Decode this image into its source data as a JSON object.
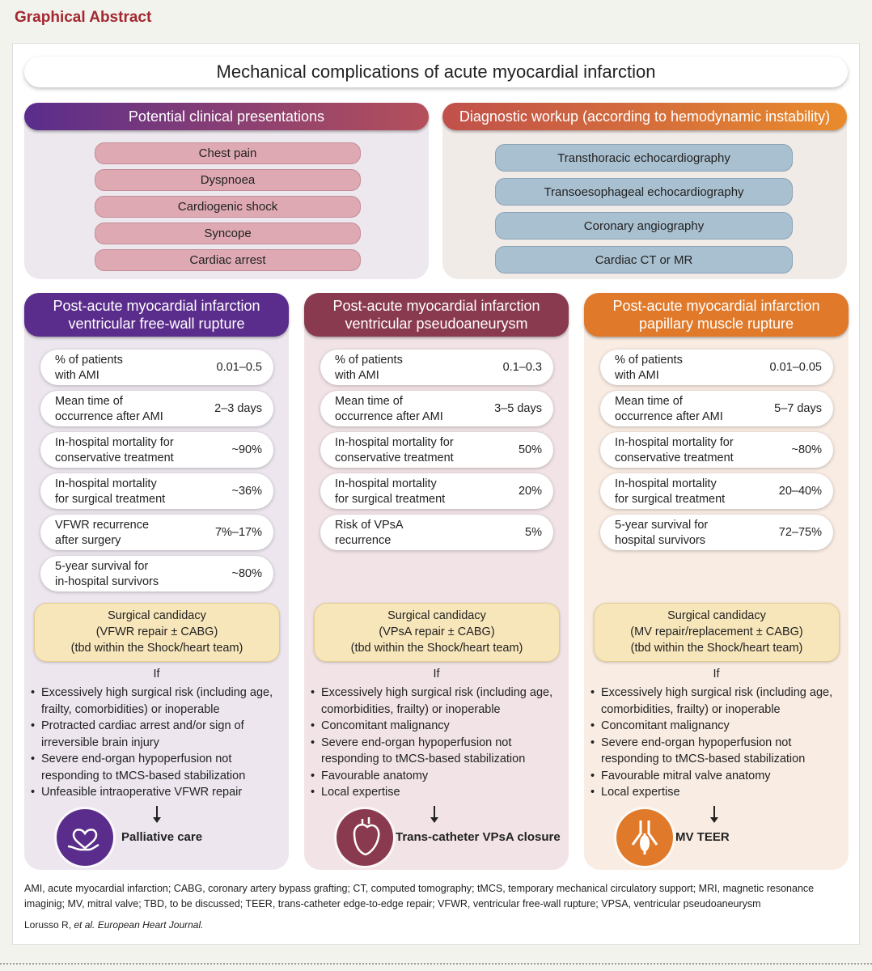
{
  "header": "Graphical Abstract",
  "title": "Mechanical complications of acute myocardial infarction",
  "presentations": {
    "title": "Potential clinical presentations",
    "items": [
      "Chest pain",
      "Dyspnoea",
      "Cardiogenic shock",
      "Syncope",
      "Cardiac arrest"
    ]
  },
  "workup": {
    "title": "Diagnostic workup (according to hemodynamic instability)",
    "items": [
      "Transthoracic echocardiography",
      "Transoesophageal echocardiography",
      "Coronary angiography",
      "Cardiac CT or MR"
    ]
  },
  "columns": [
    {
      "title": [
        "Post-acute myocardial infarction",
        "ventricular free-wall rupture"
      ],
      "stats": [
        {
          "label": [
            "% of patients",
            "with AMI"
          ],
          "value": "0.01–0.5"
        },
        {
          "label": [
            "Mean time of",
            "occurrence after AMI"
          ],
          "value": "2–3 days"
        },
        {
          "label": [
            "In-hospital mortality for",
            "conservative treatment"
          ],
          "value": "~90%"
        },
        {
          "label": [
            "In-hospital mortality",
            "for surgical treatment"
          ],
          "value": "~36%"
        },
        {
          "label": [
            "VFWR recurrence",
            "after surgery"
          ],
          "value": "7%–17%"
        },
        {
          "label": [
            "5-year survival for",
            "in-hospital survivors"
          ],
          "value": "~80%"
        }
      ],
      "candidacy": [
        "Surgical candidacy",
        "(VFWR repair ± CABG)",
        "(tbd within the Shock/heart team)"
      ],
      "if": "If",
      "bullets": [
        "Excessively high surgical risk (including age, frailty, comorbidities) or inoperable",
        "Protracted cardiac arrest and/or sign of irreversible brain injury",
        "Severe end-organ hypoperfusion not responding to tMCS-based stabilization",
        "Unfeasible intraoperative VFWR repair"
      ],
      "outcome": "Palliative care"
    },
    {
      "title": [
        "Post-acute myocardial infarction",
        "ventricular pseudoaneurysm"
      ],
      "stats": [
        {
          "label": [
            "% of patients",
            "with AMI"
          ],
          "value": "0.1–0.3"
        },
        {
          "label": [
            "Mean time of",
            "occurrence after AMI"
          ],
          "value": "3–5 days"
        },
        {
          "label": [
            "In-hospital mortality for",
            "conservative treatment"
          ],
          "value": "50%"
        },
        {
          "label": [
            "In-hospital mortality",
            "for surgical treatment"
          ],
          "value": "20%"
        },
        {
          "label": [
            "Risk of VPsA",
            "recurrence"
          ],
          "value": "5%"
        }
      ],
      "candidacy": [
        "Surgical candidacy",
        "(VPsA repair ± CABG)",
        "(tbd within the Shock/heart team)"
      ],
      "if": "If",
      "bullets": [
        "Excessively high surgical risk (including age, comorbidities, frailty) or inoperable",
        "Concomitant malignancy",
        "Severe end-organ hypoperfusion not responding to tMCS-based stabilization",
        "Favourable anatomy",
        "Local expertise"
      ],
      "outcome": "Trans-catheter VPsA closure"
    },
    {
      "title": [
        "Post-acute myocardial infarction",
        "papillary muscle rupture"
      ],
      "stats": [
        {
          "label": [
            "% of patients",
            "with AMI"
          ],
          "value": "0.01–0.05"
        },
        {
          "label": [
            "Mean time of",
            "occurrence after AMI"
          ],
          "value": "5–7 days"
        },
        {
          "label": [
            "In-hospital mortality for",
            "conservative treatment"
          ],
          "value": "~80%"
        },
        {
          "label": [
            "In-hospital mortality",
            "for surgical treatment"
          ],
          "value": "20–40%"
        },
        {
          "label": [
            "5-year survival for",
            "hospital survivors"
          ],
          "value": "72–75%"
        }
      ],
      "candidacy": [
        "Surgical candidacy",
        "(MV repair/replacement ± CABG)",
        "(tbd within the Shock/heart team)"
      ],
      "if": "If",
      "bullets": [
        "Excessively high surgical risk (including age, comorbidities, frailty) or inoperable",
        "Concomitant malignancy",
        "Severe end-organ hypoperfusion not responding to tMCS-based stabilization",
        "Favourable mitral valve anatomy",
        "Local expertise"
      ],
      "outcome": "MV TEER"
    }
  ],
  "footnote": "AMI, acute myocardial infarction; CABG, coronary artery bypass grafting; CT, computed tomography; tMCS, temporary mechanical circulatory support; MRI, magnetic resonance imaginig; MV, mitral valve; TBD, to be discussed; TEER, trans-catheter edge-to-edge repair; VFWR, ventricular free-wall rupture; VPSA, ventricular pseudoaneurysm",
  "citation": {
    "authors": "Lorusso R,",
    "journal": "et al. European Heart Journal."
  }
}
